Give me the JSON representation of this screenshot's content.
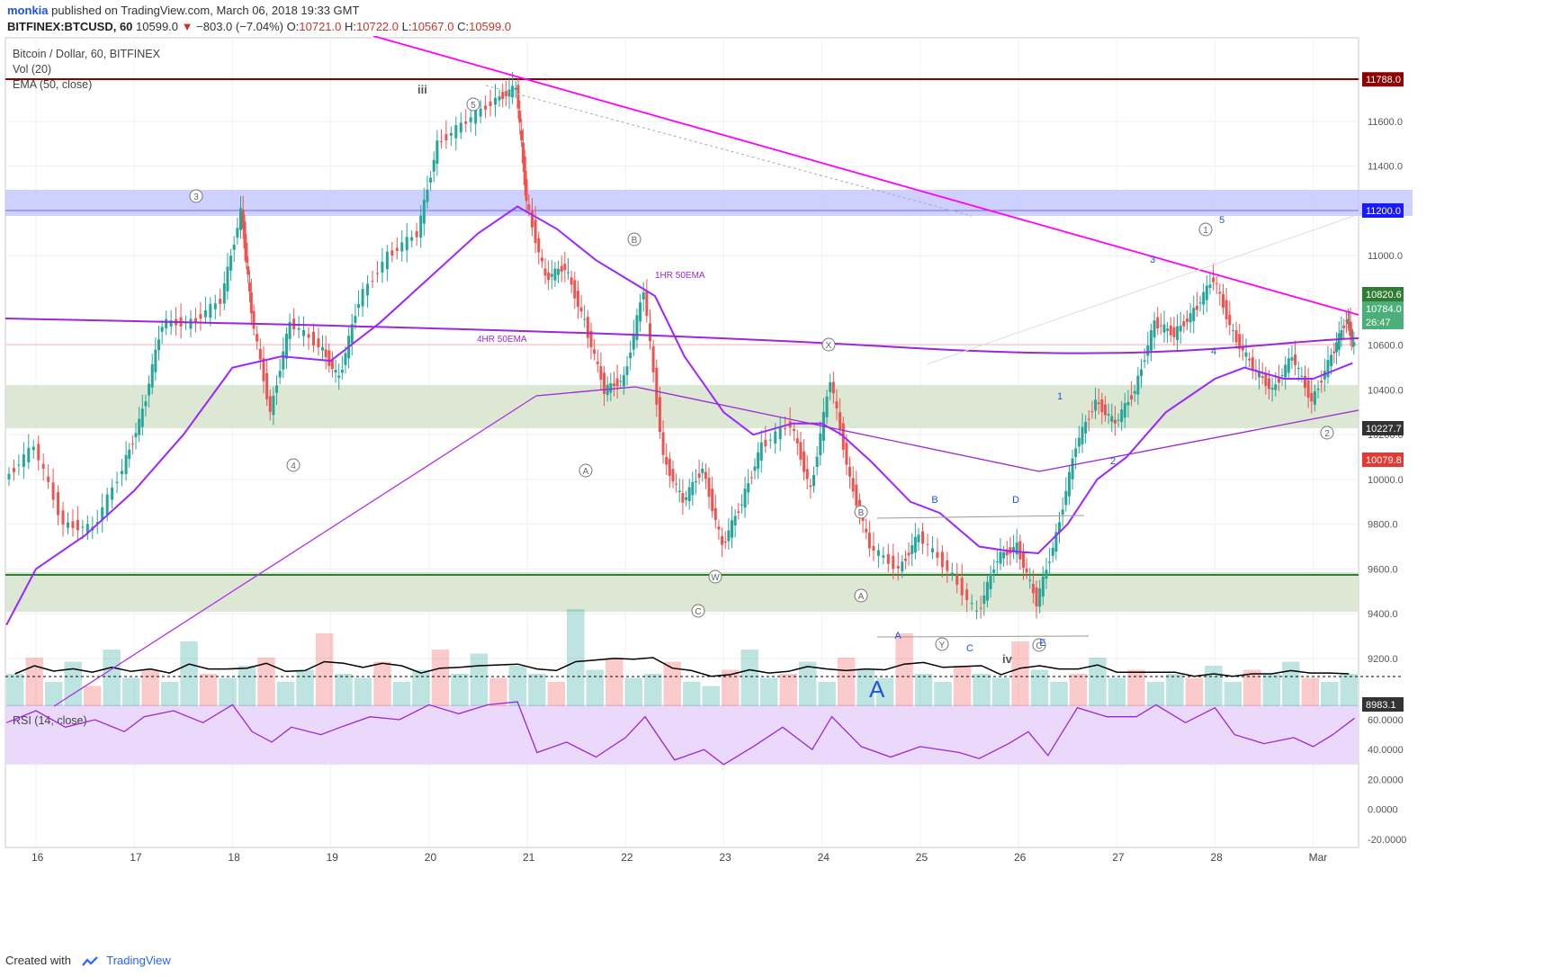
{
  "header": {
    "publisher": "monkia",
    "published_text": "published on TradingView.com, March 06, 2018 19:33 GMT",
    "symbol_line": "BITFINEX:BTCUSD, 60",
    "last_price": "10599.0",
    "change": "−803.0 (−7.04%)",
    "ohlc": {
      "o_label": "O:",
      "o": "10721.0",
      "h_label": "H:",
      "h": "10722.0",
      "l_label": "L:",
      "l": "10567.0",
      "c_label": "C:",
      "c": "10599.0"
    }
  },
  "legend": {
    "title": "Bitcoin / Dollar, 60, BITFINEX",
    "vol": "Vol (20)",
    "ema": "EMA (50, close)",
    "rsi": "RSI (14, close)"
  },
  "colors": {
    "up": "#26a69a",
    "down": "#ef5350",
    "resistance": "#8b0000",
    "support": "#2e7d32",
    "trend_magenta": "#ff00ff",
    "ema_purple": "#9c27ff",
    "blue_zone": "#c5c8ff",
    "green_zone": "#d8e4cf",
    "rsi_band": "#ead9fb"
  },
  "chart_data": {
    "type": "line",
    "series_label": "Bitcoin / Dollar, 60, BITFINEX",
    "x_tick_labels": [
      "16",
      "17",
      "18",
      "19",
      "20",
      "21",
      "22",
      "23",
      "24",
      "25",
      "26",
      "27",
      "28",
      "Mar"
    ],
    "y_tick_labels": [
      "9200.0",
      "9400.0",
      "9600.0",
      "9800.0",
      "10000.0",
      "10200.0",
      "10400.0",
      "10600.0",
      "11000.0",
      "11400.0",
      "11600.0"
    ],
    "ylim": [
      8983.1,
      11810
    ],
    "price_path": [
      [
        15.7,
        10000
      ],
      [
        16.0,
        10150
      ],
      [
        16.3,
        9800
      ],
      [
        16.6,
        9780
      ],
      [
        16.9,
        10050
      ],
      [
        17.1,
        10300
      ],
      [
        17.3,
        10700
      ],
      [
        17.6,
        10700
      ],
      [
        17.9,
        10800
      ],
      [
        18.1,
        11200
      ],
      [
        18.2,
        10750
      ],
      [
        18.4,
        10300
      ],
      [
        18.6,
        10700
      ],
      [
        18.9,
        10600
      ],
      [
        19.1,
        10450
      ],
      [
        19.3,
        10800
      ],
      [
        19.6,
        11000
      ],
      [
        19.9,
        11100
      ],
      [
        20.1,
        11500
      ],
      [
        20.4,
        11600
      ],
      [
        20.7,
        11700
      ],
      [
        20.9,
        11750
      ],
      [
        21.0,
        11250
      ],
      [
        21.2,
        10900
      ],
      [
        21.4,
        10950
      ],
      [
        21.6,
        10700
      ],
      [
        21.8,
        10400
      ],
      [
        22.0,
        10450
      ],
      [
        22.2,
        10850
      ],
      [
        22.4,
        10100
      ],
      [
        22.6,
        9900
      ],
      [
        22.8,
        10050
      ],
      [
        23.0,
        9700
      ],
      [
        23.2,
        9900
      ],
      [
        23.4,
        10150
      ],
      [
        23.7,
        10250
      ],
      [
        23.9,
        9950
      ],
      [
        24.1,
        10450
      ],
      [
        24.3,
        10000
      ],
      [
        24.5,
        9700
      ],
      [
        24.8,
        9600
      ],
      [
        25.0,
        9750
      ],
      [
        25.3,
        9600
      ],
      [
        25.6,
        9400
      ],
      [
        25.8,
        9650
      ],
      [
        26.0,
        9700
      ],
      [
        26.2,
        9450
      ],
      [
        26.4,
        9750
      ],
      [
        26.6,
        10150
      ],
      [
        26.8,
        10350
      ],
      [
        27.0,
        10250
      ],
      [
        27.2,
        10400
      ],
      [
        27.4,
        10700
      ],
      [
        27.6,
        10650
      ],
      [
        27.8,
        10750
      ],
      [
        28.0,
        10900
      ],
      [
        28.2,
        10650
      ],
      [
        28.4,
        10500
      ],
      [
        28.6,
        10400
      ],
      [
        28.8,
        10550
      ],
      [
        29.0,
        10350
      ],
      [
        29.2,
        10550
      ],
      [
        29.35,
        10720
      ],
      [
        29.42,
        10599
      ]
    ],
    "ema50_path": [
      [
        15.7,
        9350
      ],
      [
        16.0,
        9600
      ],
      [
        16.5,
        9750
      ],
      [
        17.0,
        9950
      ],
      [
        17.5,
        10200
      ],
      [
        18.0,
        10500
      ],
      [
        18.5,
        10550
      ],
      [
        19.0,
        10530
      ],
      [
        19.5,
        10700
      ],
      [
        20.0,
        10900
      ],
      [
        20.5,
        11100
      ],
      [
        20.9,
        11220
      ],
      [
        21.3,
        11120
      ],
      [
        21.7,
        10980
      ],
      [
        22.0,
        10900
      ],
      [
        22.3,
        10820
      ],
      [
        22.6,
        10550
      ],
      [
        23.0,
        10300
      ],
      [
        23.3,
        10200
      ],
      [
        23.7,
        10250
      ],
      [
        24.0,
        10250
      ],
      [
        24.2,
        10200
      ],
      [
        24.5,
        10080
      ],
      [
        24.9,
        9900
      ],
      [
        25.2,
        9850
      ],
      [
        25.6,
        9700
      ],
      [
        25.9,
        9680
      ],
      [
        26.2,
        9670
      ],
      [
        26.5,
        9800
      ],
      [
        26.8,
        10000
      ],
      [
        27.1,
        10100
      ],
      [
        27.5,
        10300
      ],
      [
        28.0,
        10450
      ],
      [
        28.3,
        10500
      ],
      [
        28.7,
        10450
      ],
      [
        29.0,
        10450
      ],
      [
        29.4,
        10520
      ]
    ],
    "volume_bars": [
      40,
      60,
      30,
      55,
      25,
      70,
      35,
      45,
      30,
      80,
      40,
      35,
      50,
      60,
      30,
      45,
      90,
      40,
      35,
      55,
      30,
      45,
      70,
      40,
      65,
      35,
      50,
      40,
      30,
      120,
      45,
      60,
      35,
      40,
      55,
      30,
      25,
      45,
      70,
      35,
      40,
      55,
      30,
      60,
      45,
      35,
      90,
      40,
      30,
      50,
      40,
      35,
      80,
      45,
      30,
      40,
      60,
      35,
      45,
      30,
      40,
      35,
      50,
      30,
      45,
      40,
      55,
      35,
      30,
      40
    ],
    "rsi_path": [
      [
        15.7,
        58
      ],
      [
        16.0,
        66
      ],
      [
        16.3,
        55
      ],
      [
        16.6,
        60
      ],
      [
        16.9,
        52
      ],
      [
        17.1,
        62
      ],
      [
        17.4,
        66
      ],
      [
        17.7,
        58
      ],
      [
        18.0,
        70
      ],
      [
        18.2,
        52
      ],
      [
        18.4,
        45
      ],
      [
        18.6,
        55
      ],
      [
        18.9,
        50
      ],
      [
        19.1,
        55
      ],
      [
        19.4,
        62
      ],
      [
        19.7,
        60
      ],
      [
        20.0,
        70
      ],
      [
        20.3,
        64
      ],
      [
        20.6,
        70
      ],
      [
        20.9,
        72
      ],
      [
        21.1,
        38
      ],
      [
        21.4,
        45
      ],
      [
        21.7,
        35
      ],
      [
        22.0,
        48
      ],
      [
        22.2,
        62
      ],
      [
        22.5,
        33
      ],
      [
        22.8,
        40
      ],
      [
        23.0,
        30
      ],
      [
        23.3,
        42
      ],
      [
        23.6,
        55
      ],
      [
        23.9,
        40
      ],
      [
        24.1,
        62
      ],
      [
        24.4,
        42
      ],
      [
        24.7,
        35
      ],
      [
        25.0,
        42
      ],
      [
        25.4,
        38
      ],
      [
        25.6,
        34
      ],
      [
        25.9,
        44
      ],
      [
        26.1,
        52
      ],
      [
        26.3,
        36
      ],
      [
        26.6,
        68
      ],
      [
        26.9,
        62
      ],
      [
        27.2,
        62
      ],
      [
        27.4,
        70
      ],
      [
        27.7,
        58
      ],
      [
        28.0,
        68
      ],
      [
        28.2,
        50
      ],
      [
        28.5,
        44
      ],
      [
        28.8,
        48
      ],
      [
        29.0,
        42
      ],
      [
        29.2,
        50
      ],
      [
        29.42,
        61
      ]
    ],
    "rsi_ylim": [
      -22,
      65
    ],
    "rsi_tick_labels": [
      "60.0000",
      "40.0000",
      "20.0000",
      "0.0000",
      "-20.0000"
    ],
    "rsi_band": [
      30,
      70
    ]
  },
  "price_axis_badges": {
    "resistance": "11788.0",
    "blue_level": "11200.0",
    "b1": "10820.6",
    "b2": "10784.0",
    "timer": "26:47",
    "b3": "10227.7",
    "b4": "10079.8",
    "vol_base": "8983.1"
  },
  "annotations": {
    "ema_1hr": "1HR 50EMA",
    "ema_4hr": "4HR 50EMA",
    "wave_iii": "iii",
    "wave_iv": "iv",
    "big_A": "A",
    "circled": [
      "5",
      "3",
      "4",
      "B",
      "A",
      "X",
      "W",
      "C",
      "B",
      "A",
      "Y",
      "C",
      "1",
      "2"
    ],
    "blue_small": [
      "5",
      "3",
      "4",
      "1",
      "2",
      "B",
      "D",
      "A",
      "C",
      "E"
    ]
  },
  "footer": {
    "created_with": "Created with",
    "brand": "TradingView"
  }
}
